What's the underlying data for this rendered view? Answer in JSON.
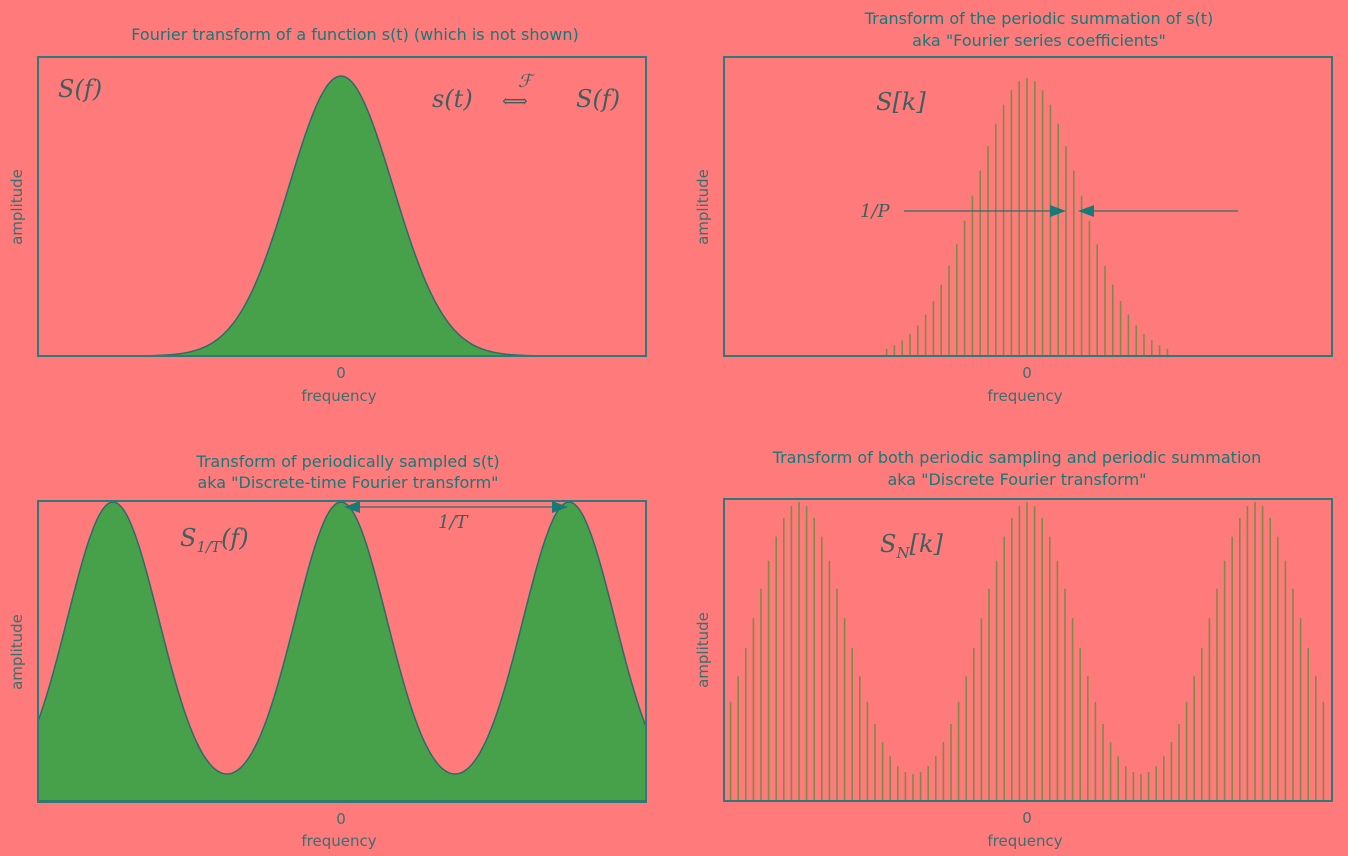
{
  "chart_data": [
    {
      "id": "p1",
      "type": "area",
      "title_lines": [
        "Fourier transform of a function s(t) (which is not shown)"
      ],
      "xlabel": "frequency",
      "ylabel": "amplitude",
      "x_ticks": [
        "0"
      ],
      "annotation": "S(f)",
      "extra_annotations": [
        "s(t)",
        "⟺",
        "S(f)",
        "ℱ"
      ],
      "curve": "single gaussian centered at 0",
      "peaks": [
        0
      ]
    },
    {
      "id": "p2",
      "type": "bar",
      "title_lines": [
        "Transform of the periodic summation of s(t)",
        "aka \"Fourier series coefficients\""
      ],
      "xlabel": "frequency",
      "ylabel": "amplitude",
      "x_ticks": [
        "0"
      ],
      "annotation": "S[k]",
      "spacing_label": "1/P",
      "curve": "samples of a single gaussian centered at 0",
      "peaks": [
        0
      ]
    },
    {
      "id": "p3",
      "type": "area",
      "title_lines": [
        "Transform of periodically sampled s(t)",
        "aka \"Discrete-time Fourier transform\""
      ],
      "xlabel": "frequency",
      "ylabel": "amplitude",
      "x_ticks": [
        "0"
      ],
      "annotation": "S_{1/T}(f)",
      "period_label": "1/T",
      "curve": "periodic gaussian, period 1/T",
      "peaks": [
        -1,
        0,
        1
      ]
    },
    {
      "id": "p4",
      "type": "bar",
      "title_lines": [
        "Transform of both periodic sampling and periodic summation",
        "aka \"Discrete Fourier transform\""
      ],
      "xlabel": "frequency",
      "ylabel": "amplitude",
      "x_ticks": [
        "0"
      ],
      "annotation": "S_N[k]",
      "curve": "samples of periodic gaussian",
      "peaks": [
        -1,
        0,
        1
      ]
    }
  ],
  "colors": {
    "background": "#ff7b7b",
    "frame": "#2e7a7a",
    "fill": "#47a14b",
    "stem": "#7e8a4a",
    "title": "#137a7a"
  }
}
